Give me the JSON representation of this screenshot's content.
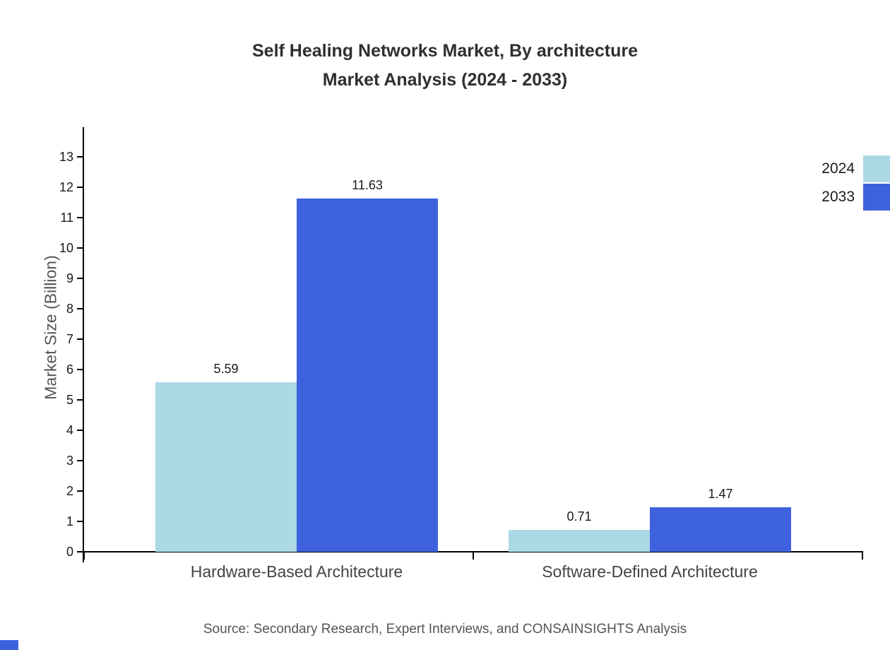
{
  "title_line1": "Self Healing Networks Market, By architecture",
  "title_line2": "Market Analysis (2024 - 2033)",
  "source": "Source: Secondary Research, Expert Interviews, and CONSAINSIGHTS Analysis",
  "colors": {
    "series_2024": "#ADD8E6",
    "series_2033": "#3E62DE",
    "axis": "#000000",
    "title_text": "#2f2f2f",
    "muted_text": "#555555"
  },
  "chart_data": {
    "type": "bar",
    "title": "Self Healing Networks Market, By architecture Market Analysis (2024 - 2033)",
    "xlabel": "",
    "ylabel": "Market Size (Billion)",
    "ylim": [
      0,
      13
    ],
    "yticks": [
      0,
      1,
      2,
      3,
      4,
      5,
      6,
      7,
      8,
      9,
      10,
      11,
      12,
      13
    ],
    "grid": false,
    "legend_position": "top-right",
    "categories": [
      "Hardware-Based Architecture",
      "Software-Defined Architecture"
    ],
    "series": [
      {
        "name": "2024",
        "color": "#ADD8E6",
        "values": [
          5.59,
          0.71
        ]
      },
      {
        "name": "2033",
        "color": "#3E62DE",
        "values": [
          11.63,
          1.47
        ]
      }
    ],
    "value_labels": [
      "5.59",
      "11.63",
      "0.71",
      "1.47"
    ]
  }
}
